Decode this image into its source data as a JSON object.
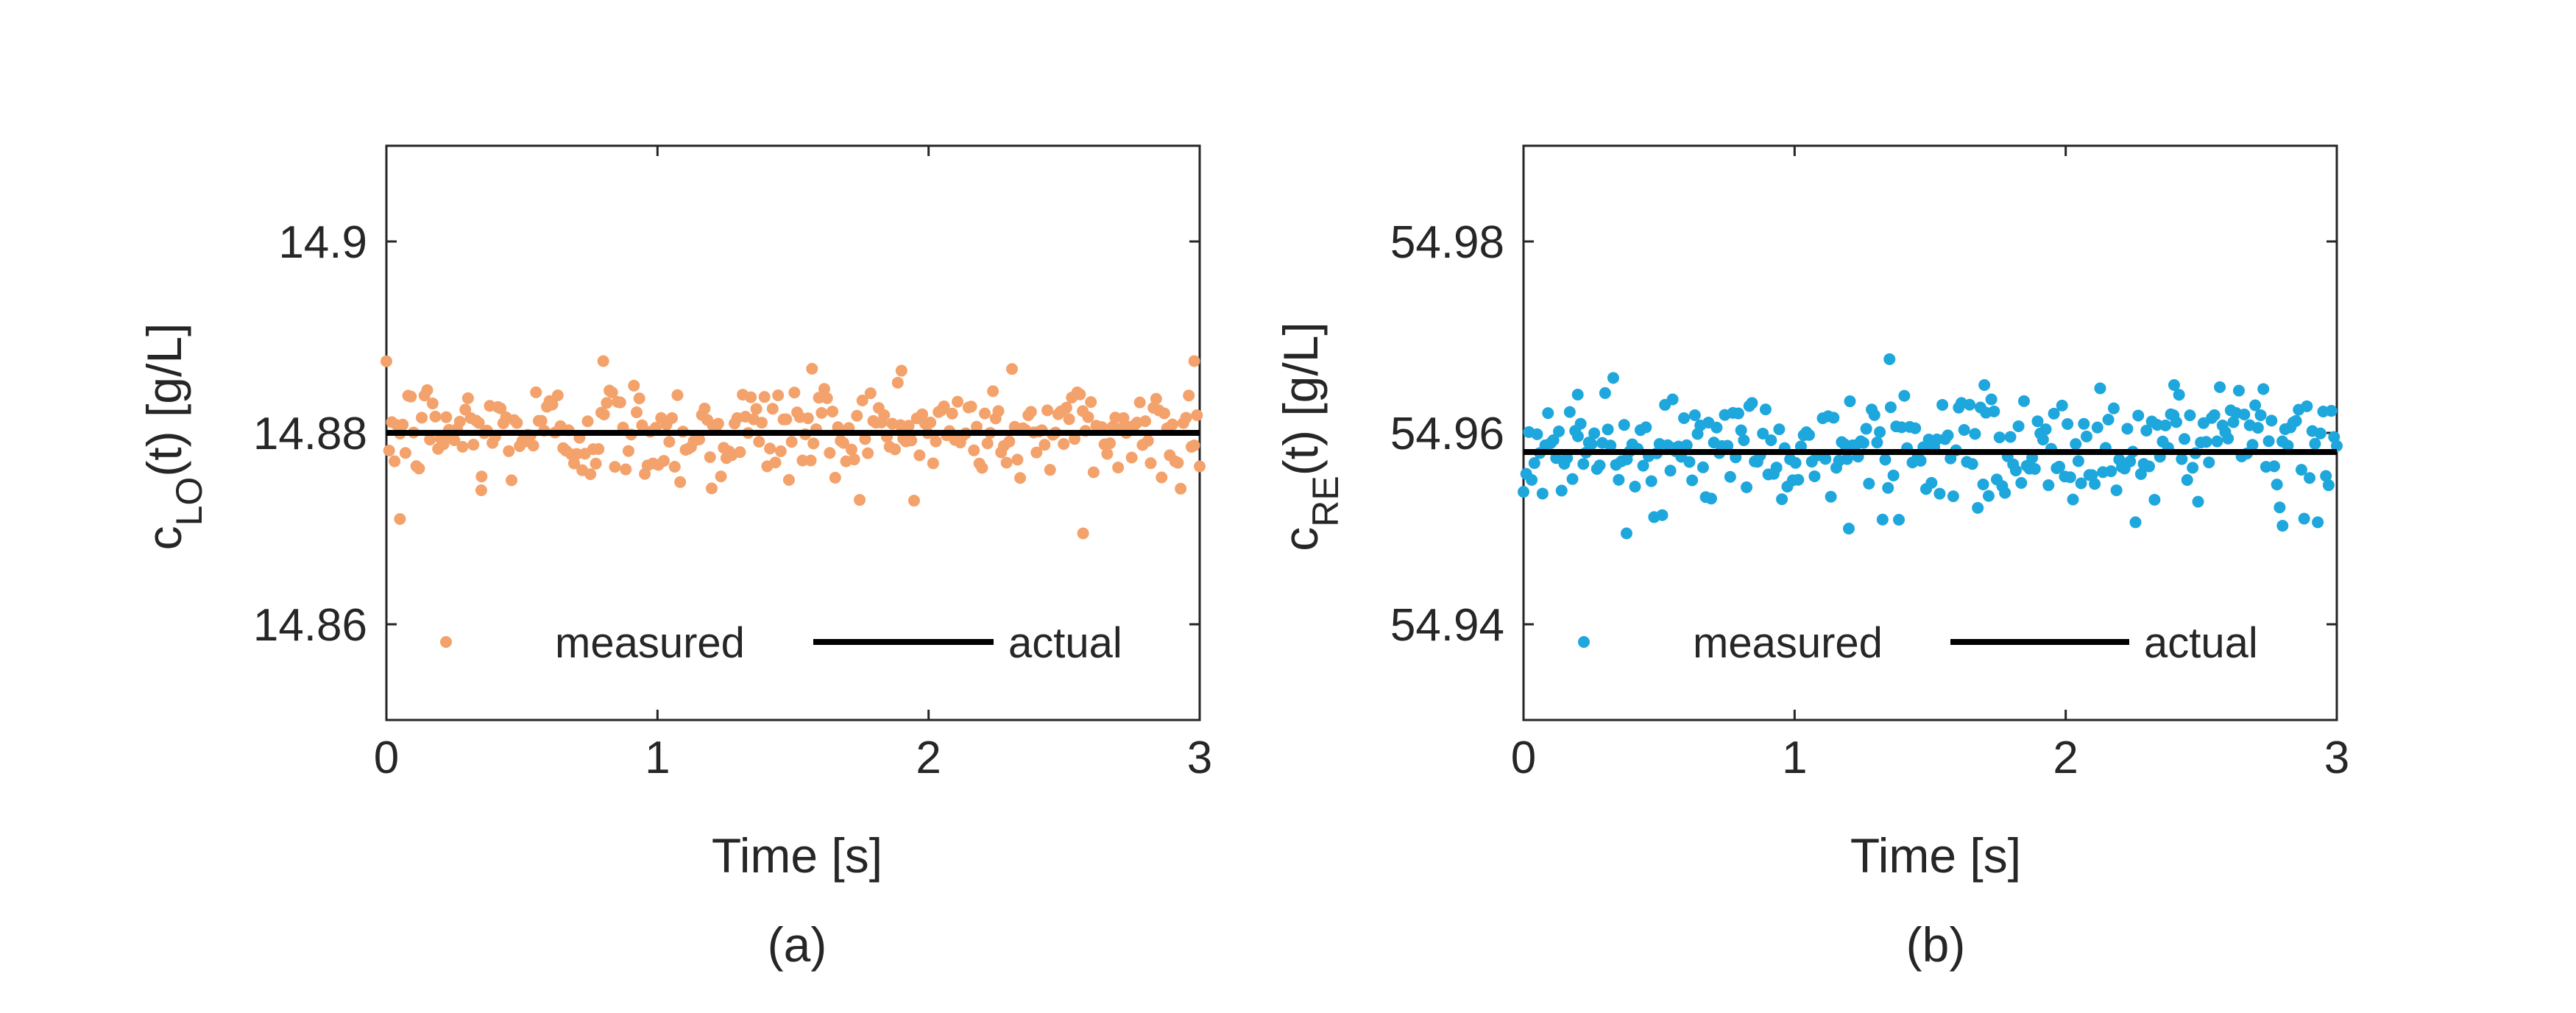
{
  "figure": {
    "panels": [
      {
        "caption": "(a)",
        "ylabel_main": "c",
        "ylabel_sub": "LO",
        "ylabel_tail": "(t) [g/L]",
        "xlabel": "Time [s]",
        "legend": {
          "measured": "measured",
          "actual": "actual"
        }
      },
      {
        "caption": "(b)",
        "ylabel_main": "c",
        "ylabel_sub": "RE",
        "ylabel_tail": "(t) [g/L]",
        "xlabel": "Time [s]",
        "legend": {
          "measured": "measured",
          "actual": "actual"
        }
      }
    ]
  },
  "chart_data": [
    {
      "type": "scatter",
      "xlabel": "Time [s]",
      "ylabel": "c_LO(t) [g/L]",
      "xlim": [
        0,
        3
      ],
      "ylim": [
        14.85,
        14.91
      ],
      "xticks": [
        0,
        1,
        2,
        3
      ],
      "yticks": [
        14.86,
        14.88,
        14.9
      ],
      "ytick_labels": [
        "14.86",
        "14.88",
        "14.9"
      ],
      "grid": false,
      "legend_position": "bottom",
      "marker_color": "#F4A26B",
      "line_color": "#000000",
      "series": [
        {
          "name": "measured",
          "kind": "scatter",
          "noise_model": {
            "center": 14.8802,
            "sd": 0.0028,
            "n": 300,
            "x_start": 0,
            "x_end": 3
          },
          "highlighted_points": [
            {
              "x": 0.05,
              "y": 14.871
            },
            {
              "x": 0.8,
              "y": 14.8875
            },
            {
              "x": 1.57,
              "y": 14.8867
            },
            {
              "x": 1.9,
              "y": 14.8865
            },
            {
              "x": 2.57,
              "y": 14.8695
            },
            {
              "x": 2.98,
              "y": 14.8875
            },
            {
              "x": 0.35,
              "y": 14.874
            },
            {
              "x": 1.2,
              "y": 14.8742
            }
          ]
        },
        {
          "name": "actual",
          "kind": "line",
          "x": [
            0,
            3
          ],
          "y": [
            14.88,
            14.88
          ]
        }
      ]
    },
    {
      "type": "scatter",
      "xlabel": "Time [s]",
      "ylabel": "c_RE(t) [g/L]",
      "xlim": [
        0,
        3
      ],
      "ylim": [
        54.93,
        54.99
      ],
      "xticks": [
        0,
        1,
        2,
        3
      ],
      "yticks": [
        54.94,
        54.96,
        54.98
      ],
      "ytick_labels": [
        "54.94",
        "54.96",
        "54.98"
      ],
      "grid": false,
      "legend_position": "bottom",
      "marker_color": "#1EA7DC",
      "line_color": "#000000",
      "series": [
        {
          "name": "measured",
          "kind": "scatter",
          "noise_model": {
            "center": 54.9582,
            "sd": 0.0029,
            "n": 300,
            "x_start": 0,
            "x_end": 3
          },
          "highlighted_points": [
            {
              "x": 0.38,
              "y": 54.9495
            },
            {
              "x": 1.2,
              "y": 54.95
            },
            {
              "x": 1.35,
              "y": 54.9677
            },
            {
              "x": 1.7,
              "y": 54.965
            },
            {
              "x": 2.4,
              "y": 54.965
            },
            {
              "x": 2.8,
              "y": 54.9503
            },
            {
              "x": 0.2,
              "y": 54.964
            },
            {
              "x": 0.55,
              "y": 54.9635
            }
          ]
        },
        {
          "name": "actual",
          "kind": "line",
          "x": [
            0,
            3
          ],
          "y": [
            54.958,
            54.958
          ]
        }
      ]
    }
  ]
}
